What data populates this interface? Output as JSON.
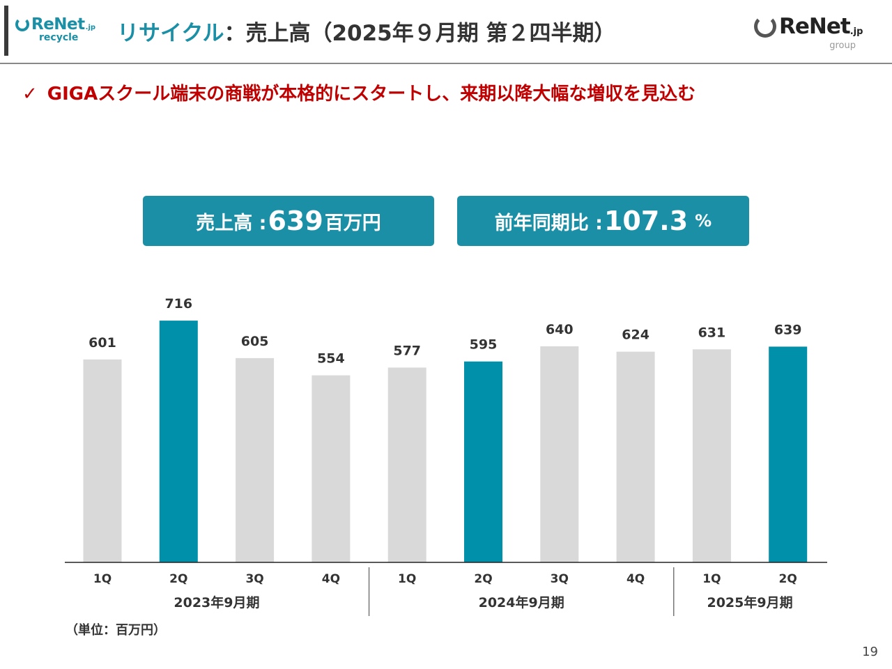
{
  "header": {
    "logo_left": {
      "brand": "ReNet",
      "jp": ".jp",
      "sub": "recycle"
    },
    "title_accent": "リサイクル",
    "title_sep": "：",
    "title_main": "売上高（2025年９月期 第２四半期）",
    "logo_right": {
      "brand": "ReNet",
      "jp": ".jp",
      "sub": "group"
    }
  },
  "headline": {
    "check": "✓",
    "text": "GIGAスクール端末の商戦が本格的にスタートし、来期以降大幅な増収を見込む"
  },
  "kpis": {
    "sales": {
      "label": "売上高 : ",
      "value": "639",
      "unit": "百万円"
    },
    "yoy": {
      "label": "前年同期比 : ",
      "value": "107.3",
      "unit": "%"
    }
  },
  "chart_data": {
    "type": "bar",
    "categories": [
      "1Q",
      "2Q",
      "3Q",
      "4Q",
      "1Q",
      "2Q",
      "3Q",
      "4Q",
      "1Q",
      "2Q"
    ],
    "groups": [
      {
        "label": "2023年9月期",
        "count": 4
      },
      {
        "label": "2024年9月期",
        "count": 4
      },
      {
        "label": "2025年9月期",
        "count": 2
      }
    ],
    "values": [
      601,
      716,
      605,
      554,
      577,
      595,
      640,
      624,
      631,
      639
    ],
    "highlighted": [
      false,
      true,
      false,
      false,
      false,
      true,
      false,
      false,
      false,
      true
    ],
    "colors": {
      "highlight": "#0090aa",
      "normal": "#d9d9d9"
    },
    "ylim": [
      0,
      800
    ],
    "unit_note": "（単位：百万円）"
  },
  "page_number": "19"
}
